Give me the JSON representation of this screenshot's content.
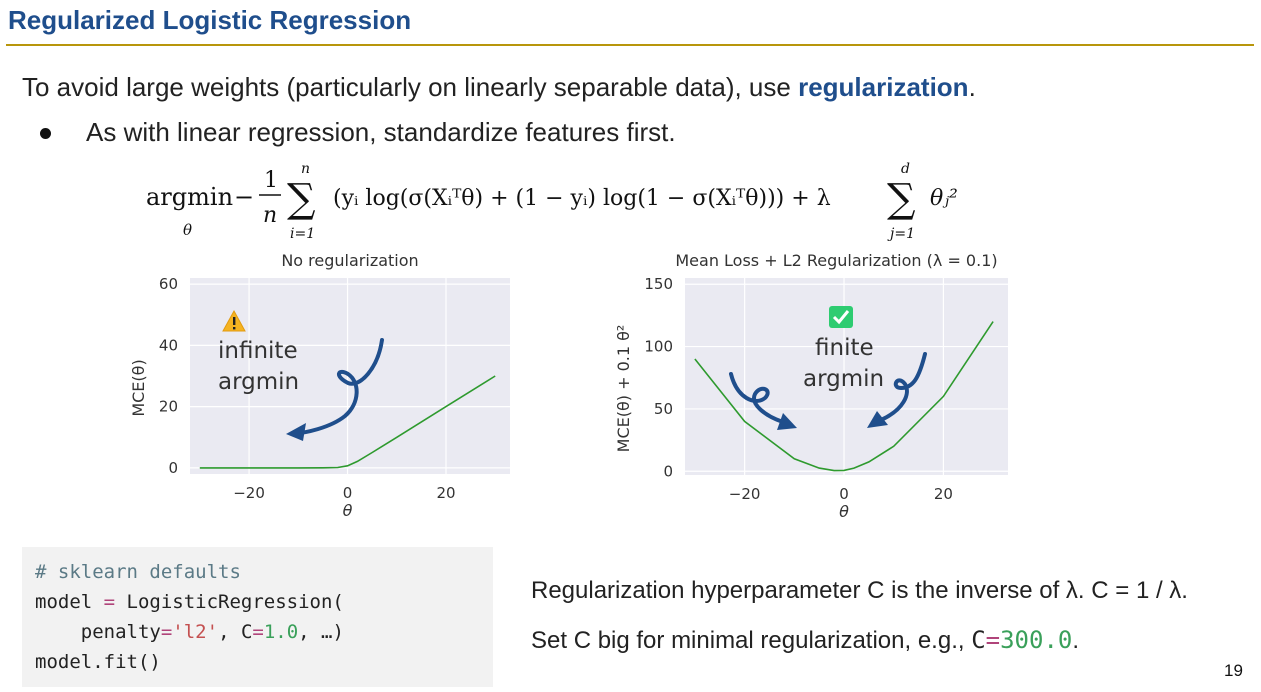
{
  "slide": {
    "title": "Regularized Logistic Regression",
    "intro_text": "To avoid large weights (particularly on linearly separable data), use ",
    "intro_keyword": "regularization",
    "intro_end": ".",
    "bullet": "As with linear regression, standardize features first.",
    "page_number": "19"
  },
  "formula": {
    "argmin": "argmin",
    "argmin_sub": "θ",
    "minus": "−",
    "frac_num": "1",
    "frac_den": "n",
    "sum1_top": "n",
    "sum1_bottom": "i=1",
    "body": "(yᵢ log(σ(Xᵢᵀθ) + (1 − yᵢ) log(1 − σ(Xᵢᵀθ))) + λ",
    "sum2_top": "d",
    "sum2_bottom": "j=1",
    "tail": "θⱼ²"
  },
  "chart_data": [
    {
      "type": "line",
      "title": "No regularization",
      "xlabel": "θ",
      "ylabel": "MCE(θ)",
      "xlim": [
        -32,
        33
      ],
      "ylim": [
        -2,
        62
      ],
      "xticks": [
        "−20",
        "0",
        "20"
      ],
      "yticks": [
        "0",
        "20",
        "40",
        "60"
      ],
      "series": [
        {
          "name": "MCE",
          "color": "#2e9a2e",
          "x": [
            -30,
            -20,
            -10,
            -5,
            -2,
            0,
            2,
            5,
            10,
            20,
            30
          ],
          "y": [
            0,
            0,
            0,
            0.01,
            0.13,
            0.69,
            2.13,
            5.01,
            10.0,
            20.0,
            30.0
          ]
        }
      ],
      "annotation": {
        "icon": "warning-icon",
        "line1": "infinite",
        "line2": "argmin"
      }
    },
    {
      "type": "line",
      "title": "Mean Loss + L2 Regularization (λ = 0.1)",
      "xlabel": "θ",
      "ylabel": "MCE(θ) + 0.1 θ²",
      "xlim": [
        -32,
        33
      ],
      "ylim": [
        -3,
        155
      ],
      "xticks": [
        "−20",
        "0",
        "20"
      ],
      "yticks": [
        "0",
        "50",
        "100",
        "150"
      ],
      "series": [
        {
          "name": "MCE + L2",
          "color": "#2e9a2e",
          "x": [
            -30,
            -20,
            -10,
            -5,
            -2,
            0,
            2,
            5,
            10,
            20,
            30
          ],
          "y": [
            90,
            40,
            10,
            2.5,
            0.5,
            0.69,
            2.5,
            7.5,
            20,
            60,
            120
          ]
        }
      ],
      "annotation": {
        "icon": "check-icon",
        "line1": "finite",
        "line2": "argmin"
      }
    }
  ],
  "code": {
    "comment": "# sklearn defaults",
    "l2_prefix": "model ",
    "l2_op": "=",
    "l2_suffix": " LogisticRegression(",
    "l3_indent": "    penalty",
    "l3_eq1": "=",
    "l3_str": "'l2'",
    "l3_mid": ", C",
    "l3_eq2": "=",
    "l3_num": "1.0",
    "l3_end": ", …)",
    "l4": "model.fit()"
  },
  "notes": {
    "line1": "Regularization hyperparameter C is the inverse of λ. C = 1 / λ.",
    "line2_text": "Set C big for minimal regularization, e.g., ",
    "line2_c": "C",
    "line2_eq": "=",
    "line2_num": "300.0",
    "line2_end": "."
  },
  "colors": {
    "title": "#1f4e8c",
    "rule": "#b8960c",
    "curve": "#2e9a2e",
    "arrow": "#1f4e8c",
    "plot_bg": "#eaeaf2",
    "warning": "#f5b321",
    "check": "#2ecc71"
  }
}
